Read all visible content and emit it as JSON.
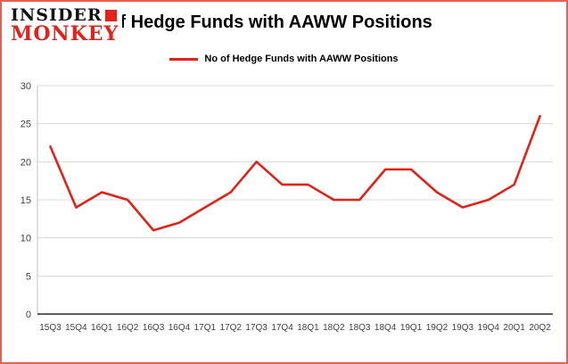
{
  "logo": {
    "line1": "INSIDER",
    "line2": "MONKEY"
  },
  "page": {
    "title": "No of Hedge Funds with AAWW Positions"
  },
  "legend": {
    "label": "No of Hedge Funds with AAWW Positions"
  },
  "chart_data": {
    "type": "line",
    "title": "No of Hedge Funds with AAWW Positions",
    "categories": [
      "15Q3",
      "15Q4",
      "16Q1",
      "16Q2",
      "16Q3",
      "16Q4",
      "17Q1",
      "17Q2",
      "17Q3",
      "17Q4",
      "18Q1",
      "18Q2",
      "18Q3",
      "18Q4",
      "19Q1",
      "19Q2",
      "19Q3",
      "19Q4",
      "20Q1",
      "20Q2"
    ],
    "values": [
      22,
      14,
      16,
      15,
      11,
      12,
      14,
      16,
      20,
      17,
      17,
      15,
      15,
      19,
      19,
      16,
      14,
      15,
      17,
      26
    ],
    "ylim": [
      0,
      30
    ],
    "yticks": [
      0,
      5,
      10,
      15,
      20,
      25,
      30
    ],
    "grid": true,
    "legend_position": "top",
    "xlabel": "",
    "ylabel": ""
  },
  "colors": {
    "border": "#e8604e",
    "line": "#e02318",
    "grid": "#d9d9d9",
    "axis": "#000000",
    "left_axis": "#c0c0c0",
    "tick_text": "#3f3f3f",
    "logo_red": "#e0231c"
  }
}
